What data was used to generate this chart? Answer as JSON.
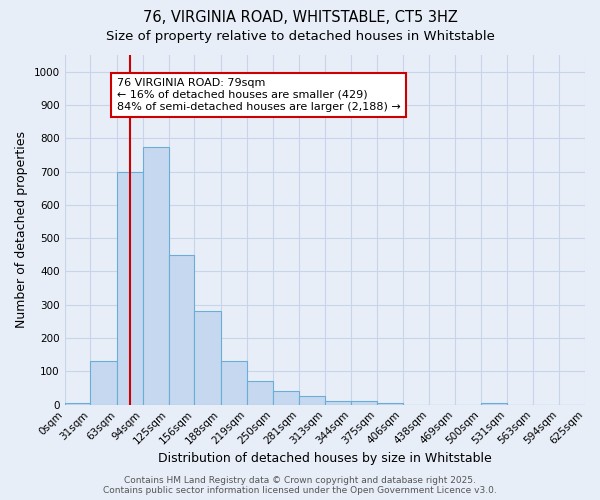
{
  "title_line1": "76, VIRGINIA ROAD, WHITSTABLE, CT5 3HZ",
  "title_line2": "Size of property relative to detached houses in Whitstable",
  "xlabel": "Distribution of detached houses by size in Whitstable",
  "ylabel": "Number of detached properties",
  "bin_edges": [
    0,
    31,
    63,
    94,
    125,
    156,
    188,
    219,
    250,
    281,
    313,
    344,
    375,
    406,
    438,
    469,
    500,
    531,
    563,
    594,
    625
  ],
  "bar_heights": [
    5,
    130,
    700,
    775,
    450,
    280,
    130,
    70,
    40,
    25,
    12,
    12,
    5,
    0,
    0,
    0,
    5,
    0,
    0,
    0
  ],
  "bar_color": "#c5d8f0",
  "bar_edge_color": "#6aaed6",
  "vline_x": 79,
  "vline_color": "#cc0000",
  "annotation_text": "76 VIRGINIA ROAD: 79sqm\n← 16% of detached houses are smaller (429)\n84% of semi-detached houses are larger (2,188) →",
  "annotation_box_facecolor": "#ffffff",
  "annotation_box_edgecolor": "#cc0000",
  "ylim": [
    0,
    1050
  ],
  "yticks": [
    0,
    100,
    200,
    300,
    400,
    500,
    600,
    700,
    800,
    900,
    1000
  ],
  "tick_labels": [
    "0sqm",
    "31sqm",
    "63sqm",
    "94sqm",
    "125sqm",
    "156sqm",
    "188sqm",
    "219sqm",
    "250sqm",
    "281sqm",
    "313sqm",
    "344sqm",
    "375sqm",
    "406sqm",
    "438sqm",
    "469sqm",
    "500sqm",
    "531sqm",
    "563sqm",
    "594sqm",
    "625sqm"
  ],
  "grid_color": "#c8d4e8",
  "background_color": "#e8eef8",
  "footer_text": "Contains HM Land Registry data © Crown copyright and database right 2025.\nContains public sector information licensed under the Open Government Licence v3.0.",
  "title_fontsize": 10.5,
  "subtitle_fontsize": 9.5,
  "axis_label_fontsize": 9,
  "tick_fontsize": 7.5,
  "footer_fontsize": 6.5,
  "annotation_fontsize": 8
}
